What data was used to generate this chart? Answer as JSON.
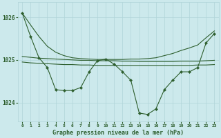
{
  "title": "Graphe pression niveau de la mer (hPa)",
  "bg_color": "#cce9ec",
  "grid_color": "#b0d4d8",
  "line_color": "#2d5e2d",
  "ylim": [
    1023.55,
    1026.35
  ],
  "xlim": [
    -0.5,
    23.5
  ],
  "yticks": [
    1024,
    1025,
    1026
  ],
  "xticks": [
    0,
    1,
    2,
    3,
    4,
    5,
    6,
    7,
    8,
    9,
    10,
    11,
    12,
    13,
    14,
    15,
    16,
    17,
    18,
    19,
    20,
    21,
    22,
    23
  ],
  "main": [
    1026.1,
    1025.55,
    1025.05,
    1024.82,
    1024.3,
    1024.28,
    1024.28,
    1024.35,
    1024.72,
    1024.98,
    1025.02,
    1024.9,
    1024.72,
    1024.52,
    1023.75,
    1023.72,
    1023.85,
    1024.3,
    1024.52,
    1024.72,
    1024.72,
    1024.82,
    1025.4,
    1025.62
  ],
  "smooth_top": [
    1026.1,
    1025.82,
    1025.55,
    1025.32,
    1025.18,
    1025.1,
    1025.05,
    1025.03,
    1025.02,
    1025.01,
    1025.01,
    1025.01,
    1025.01,
    1025.02,
    1025.02,
    1025.03,
    1025.05,
    1025.1,
    1025.15,
    1025.22,
    1025.28,
    1025.35,
    1025.52,
    1025.68
  ],
  "flat1": [
    1025.08,
    1025.06,
    1025.04,
    1025.03,
    1025.02,
    1025.01,
    1025.0,
    1024.99,
    1024.99,
    1024.98,
    1024.98,
    1024.98,
    1024.97,
    1024.97,
    1024.96,
    1024.96,
    1024.96,
    1024.96,
    1024.96,
    1024.97,
    1024.97,
    1024.97,
    1024.98,
    1024.99
  ],
  "flat2": [
    1024.95,
    1024.93,
    1024.92,
    1024.91,
    1024.9,
    1024.89,
    1024.89,
    1024.88,
    1024.88,
    1024.87,
    1024.87,
    1024.87,
    1024.87,
    1024.87,
    1024.87,
    1024.87,
    1024.87,
    1024.87,
    1024.87,
    1024.87,
    1024.87,
    1024.88,
    1024.88,
    1024.89
  ]
}
